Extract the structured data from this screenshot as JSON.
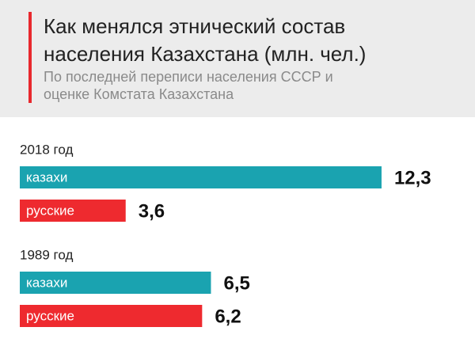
{
  "chart_data": {
    "type": "hbar-grouped",
    "title": "Как менялся этнический состав населения Казахстана (млн. чел.)",
    "subtitle": "По последней переписи населения СССР и оценке Комстата Казахстана",
    "categories": [
      "2018 год",
      "1989 год"
    ],
    "series": [
      {
        "name": "казахи",
        "color": "#1aa3b0",
        "values": [
          12.3,
          6.5
        ],
        "value_labels": [
          "12,3",
          "6,5"
        ]
      },
      {
        "name": "русские",
        "color": "#ee2a2f",
        "values": [
          3.6,
          6.2
        ],
        "value_labels": [
          "3,6",
          "6,2"
        ]
      }
    ]
  }
}
